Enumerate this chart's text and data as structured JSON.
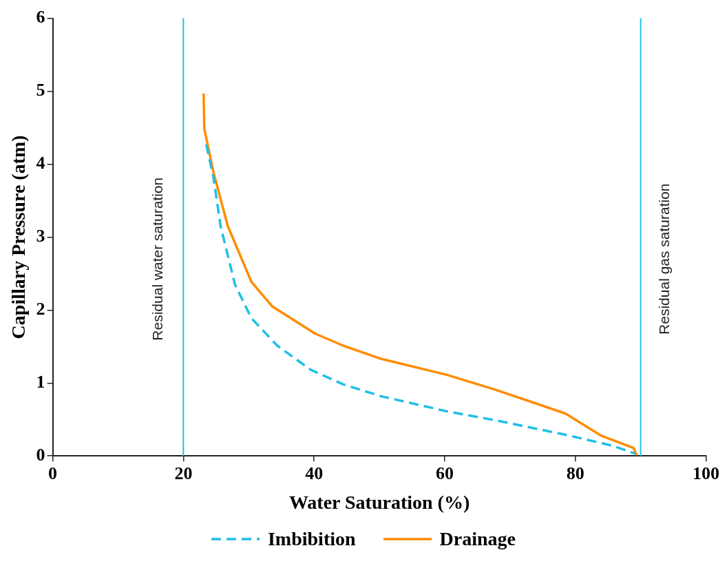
{
  "chart_data": {
    "type": "line",
    "xlabel": "Water Saturation (%)",
    "ylabel": "Capillary Pressure (atm)",
    "xlim": [
      0,
      100
    ],
    "xticks": [
      0,
      20,
      40,
      60,
      80,
      100
    ],
    "ylim": [
      0,
      6
    ],
    "yticks": [
      0,
      1,
      2,
      3,
      4,
      5,
      6
    ],
    "grid": false,
    "legend": "bottom",
    "marker": "none",
    "series": [
      {
        "name": "Imbibition",
        "color": "#1ec0e6",
        "line_style": "dashed",
        "x": [
          23.5,
          24.6,
          25.7,
          27.9,
          30.4,
          34.4,
          39.5,
          44.5,
          50.2,
          60.4,
          67.7,
          78.5,
          85.7,
          89.2
        ],
        "values": [
          4.27,
          3.82,
          3.15,
          2.35,
          1.89,
          1.51,
          1.18,
          0.98,
          0.82,
          0.61,
          0.49,
          0.29,
          0.14,
          0.03
        ]
      },
      {
        "name": "Drainage",
        "color": "#ff8c00",
        "line_style": "solid",
        "x": [
          23.1,
          23.2,
          24.6,
          26.8,
          30.4,
          33.6,
          40.1,
          44.5,
          50.3,
          60.4,
          67.7,
          78.5,
          83.9,
          88.9,
          89.4
        ],
        "values": [
          4.97,
          4.49,
          3.89,
          3.15,
          2.39,
          2.05,
          1.68,
          1.51,
          1.33,
          1.11,
          0.91,
          0.58,
          0.28,
          0.11,
          0.01
        ]
      }
    ],
    "ref_lines": [
      {
        "axis": "x",
        "value": 20,
        "label": "Residual water saturation",
        "color": "#1ec0e6"
      },
      {
        "axis": "x",
        "value": 90,
        "label": "Residual gas saturation",
        "color": "#1ec0e6"
      }
    ]
  }
}
